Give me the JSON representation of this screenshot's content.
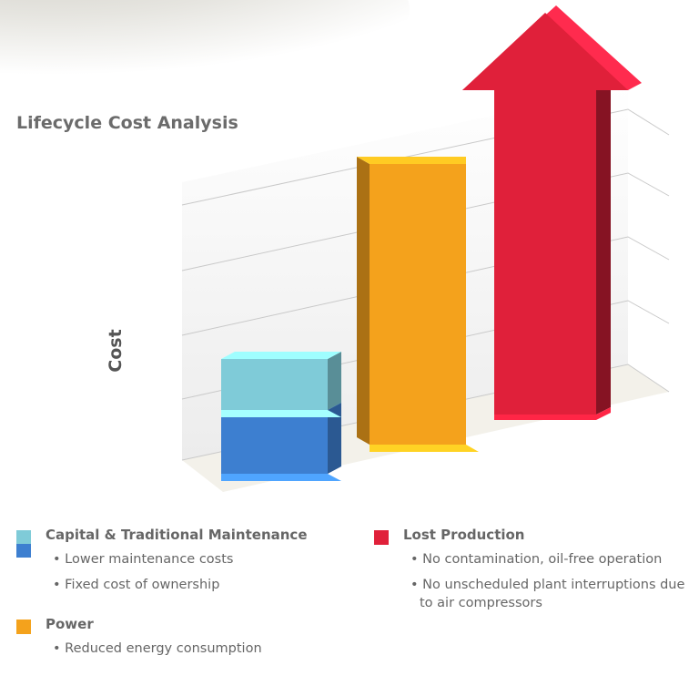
{
  "chart_data": {
    "type": "bar",
    "title": "Lifecycle Cost Analysis",
    "y_label": "Cost",
    "ylim": [
      0,
      6.5
    ],
    "series": [
      {
        "name": "Capital & Traditional Maintenance",
        "colors": [
          "#3d7fd0",
          "#7fcbd8"
        ],
        "values": [
          1.0,
          0.8
        ],
        "notes": [
          "Lower maintenance costs",
          "Fixed cost of ownership"
        ]
      },
      {
        "name": "Power",
        "color": "#f4a21c",
        "values": [
          4.4
        ],
        "notes": [
          "Reduced energy consumption"
        ]
      },
      {
        "name": "Lost Production",
        "color": "#e0203a",
        "values": [
          6.3
        ],
        "notes": [
          "No contamination, oil-free operation",
          "No unscheduled plant interruptions due to air compressors"
        ]
      }
    ]
  }
}
